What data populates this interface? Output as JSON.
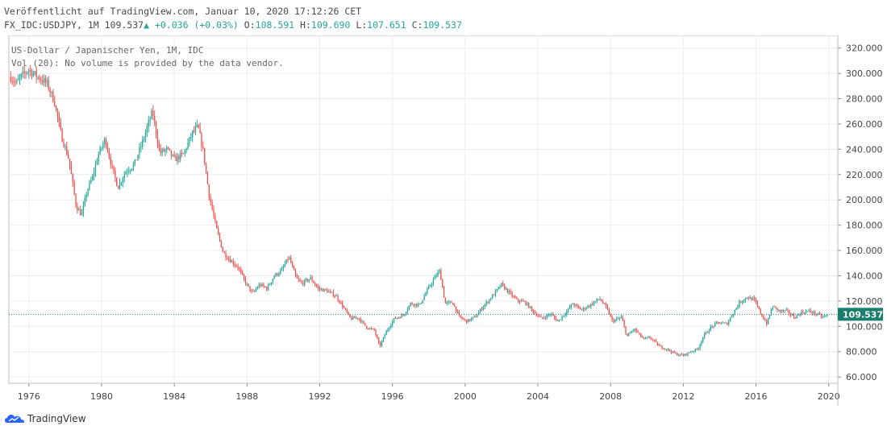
{
  "header": {
    "published_line": "Veröffentlicht auf TradingView.com, Januar 10, 2020 17:12:26 CET",
    "symbol": "FX_IDC:USDJPY, 1M",
    "last": "109.537",
    "change": "+0.036 (+0.03%)",
    "o_label": "O:",
    "o_value": "108.591",
    "h_label": "H:",
    "h_value": "109.690",
    "l_label": "L:",
    "l_value": "107.651",
    "c_label": "C:",
    "c_value": "109.537"
  },
  "legend": {
    "title": "US-Dollar / Japanischer Yen, 1M, IDC",
    "volume_note": "Vol (20): No volume is provided by the data vendor."
  },
  "price_tag": "109.537",
  "brand": "TradingView",
  "colors": {
    "up": "#26a69a",
    "down": "#ef5350",
    "grid": "#e9edf2",
    "tag": "#1b7d6e"
  },
  "chart_data": {
    "type": "candlestick",
    "title": "US-Dollar / Japanischer Yen, 1M, IDC",
    "y_ticks": [
      "60.000",
      "80.000",
      "100.000",
      "120.000",
      "140.000",
      "160.000",
      "180.000",
      "200.000",
      "220.000",
      "240.000",
      "260.000",
      "280.000",
      "300.000",
      "320.000"
    ],
    "x_ticks": [
      "1976",
      "1980",
      "1984",
      "1988",
      "1992",
      "1996",
      "2000",
      "2004",
      "2008",
      "2012",
      "2016",
      "2020"
    ],
    "ylim": [
      55,
      330
    ],
    "xlim": [
      1974.9,
      2020.5
    ],
    "grid": true,
    "last_value": 109.537,
    "series_approx": [
      [
        1975.0,
        297
      ],
      [
        1975.3,
        292
      ],
      [
        1975.6,
        298
      ],
      [
        1976.0,
        303
      ],
      [
        1976.5,
        297
      ],
      [
        1977.0,
        292
      ],
      [
        1977.4,
        278
      ],
      [
        1977.8,
        250
      ],
      [
        1978.2,
        232
      ],
      [
        1978.6,
        195
      ],
      [
        1978.9,
        188
      ],
      [
        1979.2,
        207
      ],
      [
        1979.5,
        218
      ],
      [
        1979.8,
        235
      ],
      [
        1980.2,
        248
      ],
      [
        1980.6,
        224
      ],
      [
        1980.9,
        210
      ],
      [
        1981.3,
        222
      ],
      [
        1981.8,
        228
      ],
      [
        1982.3,
        248
      ],
      [
        1982.8,
        270
      ],
      [
        1983.2,
        237
      ],
      [
        1983.6,
        240
      ],
      [
        1984.0,
        232
      ],
      [
        1984.5,
        236
      ],
      [
        1985.0,
        253
      ],
      [
        1985.3,
        258
      ],
      [
        1985.6,
        238
      ],
      [
        1985.9,
        205
      ],
      [
        1986.3,
        178
      ],
      [
        1986.7,
        158
      ],
      [
        1987.1,
        152
      ],
      [
        1987.5,
        147
      ],
      [
        1987.9,
        135
      ],
      [
        1988.3,
        126
      ],
      [
        1988.7,
        133
      ],
      [
        1989.1,
        130
      ],
      [
        1989.5,
        140
      ],
      [
        1989.9,
        144
      ],
      [
        1990.3,
        155
      ],
      [
        1990.7,
        138
      ],
      [
        1991.0,
        134
      ],
      [
        1991.5,
        138
      ],
      [
        1991.9,
        130
      ],
      [
        1992.4,
        128
      ],
      [
        1992.9,
        124
      ],
      [
        1993.3,
        115
      ],
      [
        1993.7,
        106
      ],
      [
        1994.1,
        107
      ],
      [
        1994.6,
        99
      ],
      [
        1995.0,
        97
      ],
      [
        1995.3,
        84
      ],
      [
        1995.7,
        97
      ],
      [
        1996.1,
        106
      ],
      [
        1996.6,
        109
      ],
      [
        1997.0,
        118
      ],
      [
        1997.5,
        117
      ],
      [
        1997.9,
        128
      ],
      [
        1998.3,
        138
      ],
      [
        1998.6,
        144
      ],
      [
        1998.9,
        118
      ],
      [
        1999.3,
        119
      ],
      [
        1999.7,
        107
      ],
      [
        2000.1,
        104
      ],
      [
        2000.6,
        108
      ],
      [
        2001.0,
        116
      ],
      [
        2001.5,
        124
      ],
      [
        2002.0,
        133
      ],
      [
        2002.4,
        127
      ],
      [
        2002.8,
        121
      ],
      [
        2003.3,
        119
      ],
      [
        2003.8,
        111
      ],
      [
        2004.2,
        106
      ],
      [
        2004.7,
        110
      ],
      [
        2005.1,
        104
      ],
      [
        2005.6,
        112
      ],
      [
        2005.9,
        118
      ],
      [
        2006.4,
        113
      ],
      [
        2006.9,
        117
      ],
      [
        2007.4,
        122
      ],
      [
        2007.8,
        114
      ],
      [
        2008.1,
        104
      ],
      [
        2008.6,
        107
      ],
      [
        2008.9,
        92
      ],
      [
        2009.3,
        98
      ],
      [
        2009.8,
        90
      ],
      [
        2010.2,
        91
      ],
      [
        2010.7,
        84
      ],
      [
        2011.1,
        82
      ],
      [
        2011.6,
        78
      ],
      [
        2012.0,
        77
      ],
      [
        2012.4,
        80
      ],
      [
        2012.8,
        82
      ],
      [
        2013.1,
        92
      ],
      [
        2013.5,
        99
      ],
      [
        2013.9,
        103
      ],
      [
        2014.4,
        102
      ],
      [
        2014.8,
        112
      ],
      [
        2015.1,
        119
      ],
      [
        2015.5,
        123
      ],
      [
        2015.9,
        121
      ],
      [
        2016.3,
        109
      ],
      [
        2016.6,
        102
      ],
      [
        2016.9,
        116
      ],
      [
        2017.3,
        112
      ],
      [
        2017.7,
        112
      ],
      [
        2018.1,
        107
      ],
      [
        2018.5,
        111
      ],
      [
        2018.9,
        112
      ],
      [
        2019.3,
        110
      ],
      [
        2019.7,
        107
      ],
      [
        2019.95,
        109.537
      ]
    ]
  }
}
